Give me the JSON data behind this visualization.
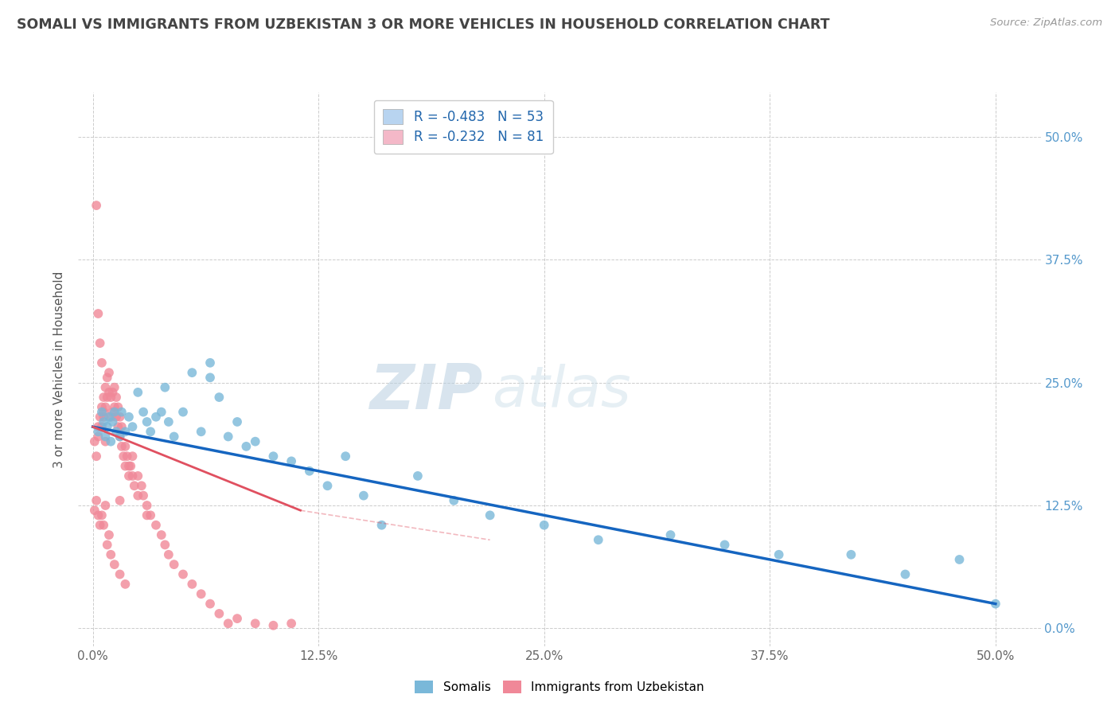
{
  "title": "SOMALI VS IMMIGRANTS FROM UZBEKISTAN 3 OR MORE VEHICLES IN HOUSEHOLD CORRELATION CHART",
  "source": "Source: ZipAtlas.com",
  "ylabel": "3 or more Vehicles in Household",
  "yaxis_ticks": [
    0.0,
    0.125,
    0.25,
    0.375,
    0.5
  ],
  "yaxis_tick_labels": [
    "0.0%",
    "12.5%",
    "25.0%",
    "37.5%",
    "50.0%"
  ],
  "xaxis_ticks": [
    0.0,
    0.125,
    0.25,
    0.375,
    0.5
  ],
  "xaxis_tick_labels": [
    "0.0%",
    "12.5%",
    "25.0%",
    "37.5%",
    "50.0%"
  ],
  "xlim": [
    -0.008,
    0.525
  ],
  "ylim": [
    -0.018,
    0.545
  ],
  "legend_entries": [
    {
      "label": "R = -0.483   N = 53",
      "color": "#b8d4f0"
    },
    {
      "label": "R = -0.232   N = 81",
      "color": "#f4b8c8"
    }
  ],
  "somali_color": "#7ab8d9",
  "uzbekistan_color": "#f08898",
  "somali_line_color": "#1565c0",
  "uzbekistan_line_color": "#e05060",
  "background_color": "#ffffff",
  "grid_color": "#cccccc",
  "watermark_text": "ZIPatlas",
  "watermark_color": "#ccdded",
  "title_color": "#444444",
  "right_tick_color": "#5599cc",
  "bottom_legend_labels": [
    "Somalis",
    "Immigrants from Uzbekistan"
  ],
  "somali_x": [
    0.003,
    0.005,
    0.006,
    0.007,
    0.008,
    0.009,
    0.01,
    0.011,
    0.012,
    0.013,
    0.015,
    0.016,
    0.018,
    0.02,
    0.022,
    0.025,
    0.028,
    0.03,
    0.032,
    0.035,
    0.038,
    0.04,
    0.042,
    0.045,
    0.05,
    0.055,
    0.06,
    0.065,
    0.07,
    0.075,
    0.08,
    0.085,
    0.09,
    0.1,
    0.11,
    0.12,
    0.13,
    0.14,
    0.15,
    0.16,
    0.18,
    0.2,
    0.22,
    0.25,
    0.28,
    0.32,
    0.35,
    0.38,
    0.42,
    0.45,
    0.48,
    0.5,
    0.065
  ],
  "somali_y": [
    0.2,
    0.22,
    0.21,
    0.195,
    0.205,
    0.215,
    0.19,
    0.21,
    0.22,
    0.2,
    0.195,
    0.22,
    0.2,
    0.215,
    0.205,
    0.24,
    0.22,
    0.21,
    0.2,
    0.215,
    0.22,
    0.245,
    0.21,
    0.195,
    0.22,
    0.26,
    0.2,
    0.27,
    0.235,
    0.195,
    0.21,
    0.185,
    0.19,
    0.175,
    0.17,
    0.16,
    0.145,
    0.175,
    0.135,
    0.105,
    0.155,
    0.13,
    0.115,
    0.105,
    0.09,
    0.095,
    0.085,
    0.075,
    0.075,
    0.055,
    0.07,
    0.025,
    0.255
  ],
  "uzbekistan_x": [
    0.001,
    0.002,
    0.003,
    0.003,
    0.004,
    0.005,
    0.005,
    0.006,
    0.006,
    0.007,
    0.007,
    0.008,
    0.008,
    0.009,
    0.009,
    0.01,
    0.01,
    0.011,
    0.011,
    0.012,
    0.012,
    0.013,
    0.013,
    0.014,
    0.014,
    0.015,
    0.015,
    0.016,
    0.016,
    0.017,
    0.018,
    0.018,
    0.019,
    0.02,
    0.02,
    0.021,
    0.022,
    0.022,
    0.023,
    0.025,
    0.025,
    0.027,
    0.028,
    0.03,
    0.03,
    0.032,
    0.035,
    0.038,
    0.04,
    0.042,
    0.045,
    0.05,
    0.055,
    0.06,
    0.065,
    0.07,
    0.075,
    0.08,
    0.09,
    0.1,
    0.11,
    0.001,
    0.002,
    0.003,
    0.004,
    0.005,
    0.006,
    0.007,
    0.008,
    0.009,
    0.01,
    0.012,
    0.015,
    0.018,
    0.002,
    0.003,
    0.004,
    0.005,
    0.006,
    0.007,
    0.015
  ],
  "uzbekistan_y": [
    0.19,
    0.175,
    0.205,
    0.195,
    0.215,
    0.225,
    0.205,
    0.235,
    0.215,
    0.245,
    0.225,
    0.255,
    0.235,
    0.24,
    0.26,
    0.215,
    0.235,
    0.22,
    0.24,
    0.225,
    0.245,
    0.215,
    0.235,
    0.205,
    0.225,
    0.195,
    0.215,
    0.185,
    0.205,
    0.175,
    0.185,
    0.165,
    0.175,
    0.165,
    0.155,
    0.165,
    0.155,
    0.175,
    0.145,
    0.155,
    0.135,
    0.145,
    0.135,
    0.125,
    0.115,
    0.115,
    0.105,
    0.095,
    0.085,
    0.075,
    0.065,
    0.055,
    0.045,
    0.035,
    0.025,
    0.015,
    0.005,
    0.01,
    0.005,
    0.003,
    0.005,
    0.12,
    0.13,
    0.115,
    0.105,
    0.115,
    0.105,
    0.125,
    0.085,
    0.095,
    0.075,
    0.065,
    0.055,
    0.045,
    0.43,
    0.32,
    0.29,
    0.27,
    0.22,
    0.19,
    0.13
  ],
  "somali_reg": [
    0.0,
    0.5,
    0.205,
    0.025
  ],
  "uzbekistan_reg": [
    0.0,
    0.115,
    0.205,
    0.12
  ]
}
